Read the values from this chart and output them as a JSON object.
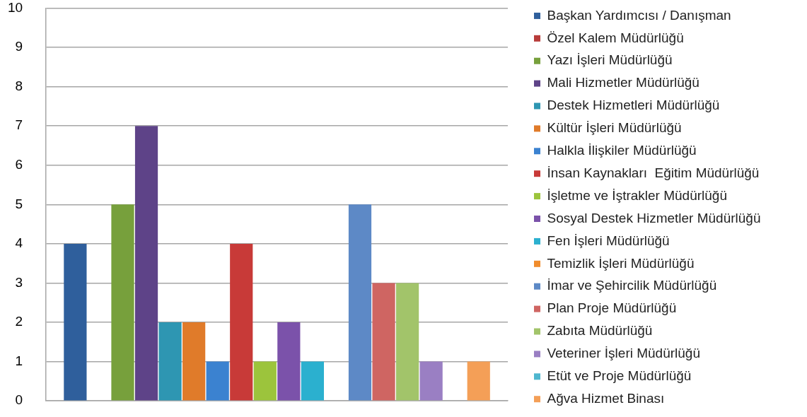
{
  "chart_data": {
    "type": "bar",
    "categories": [
      null
    ],
    "series": [
      {
        "name": "Başkan Yardımcısı / Danışman",
        "color": "#2f5f9c",
        "values": [
          4
        ]
      },
      {
        "name": "Özel Kalem Müdürlüğü",
        "color": "#b83c3a",
        "values": [
          0
        ]
      },
      {
        "name": "Yazı İşleri Müdürlüğü",
        "color": "#77a03c",
        "values": [
          5
        ]
      },
      {
        "name": "Mali Hizmetler Müdürlüğü",
        "color": "#5e4388",
        "values": [
          7
        ]
      },
      {
        "name": "Destek Hizmetleri Müdürlüğü",
        "color": "#2e96b2",
        "values": [
          2
        ]
      },
      {
        "name": "Kültür İşleri Müdürlüğü",
        "color": "#e07b2a",
        "values": [
          2
        ]
      },
      {
        "name": "Halkla İlişkiler Müdürlüğü",
        "color": "#3b82d0",
        "values": [
          1
        ]
      },
      {
        "name": "İnsan Kaynakları  Eğitim Müdürlüğü",
        "color": "#c83a38",
        "values": [
          4
        ]
      },
      {
        "name": "İşletme ve İştrakler Müdürlüğü",
        "color": "#9cc43c",
        "values": [
          1
        ]
      },
      {
        "name": "Sosyal Destek Hizmetler Müdürlüğü",
        "color": "#7b52aa",
        "values": [
          2
        ]
      },
      {
        "name": "Fen İşleri Müdürlüğü",
        "color": "#2bb0cf",
        "values": [
          1
        ]
      },
      {
        "name": "Temizlik İşleri Müdürlüğü",
        "color": "#f08c2c",
        "values": [
          0
        ]
      },
      {
        "name": "İmar ve Şehircilik Müdürlüğü",
        "color": "#5d89c6",
        "values": [
          5
        ]
      },
      {
        "name": "Plan Proje Müdürlüğü",
        "color": "#cf6562",
        "values": [
          3
        ]
      },
      {
        "name": "Zabıta Müdürlüğü",
        "color": "#a2c46a",
        "values": [
          3
        ]
      },
      {
        "name": "Veteriner İşleri Müdürlüğü",
        "color": "#9a7fc3",
        "values": [
          1
        ]
      },
      {
        "name": "Etüt ve Proje Müdürlüğü",
        "color": "#4fb7cf",
        "values": [
          0
        ]
      },
      {
        "name": "Ağva Hizmet Binası",
        "color": "#f49f57",
        "values": [
          1
        ]
      }
    ],
    "ylim": [
      0,
      10
    ],
    "yticks": [
      0,
      1,
      2,
      3,
      4,
      5,
      6,
      7,
      8,
      9,
      10
    ],
    "grid": "y",
    "legend": "right"
  }
}
